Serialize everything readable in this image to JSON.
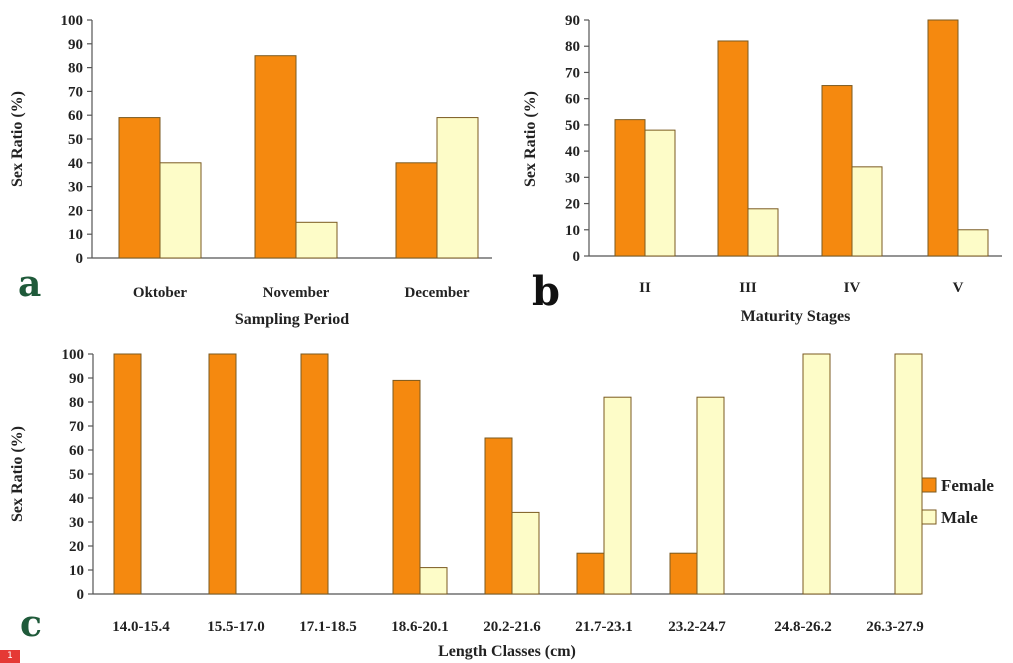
{
  "colors": {
    "female": "#f5890f",
    "male": "#fdfcc8",
    "bar_stroke": "#7a5a20",
    "axis": "#555555"
  },
  "legend": {
    "position": "right of panel c",
    "items": [
      {
        "name": "Female",
        "color": "#f5890f"
      },
      {
        "name": "Male",
        "color": "#fdfcc8"
      }
    ]
  },
  "chart_data": [
    {
      "panel": "a",
      "type": "bar",
      "ylabel": "Sex Ratio (%)",
      "xlabel": "Sampling Period",
      "ylim": [
        0,
        100
      ],
      "yticks": [
        0,
        10,
        20,
        30,
        40,
        50,
        60,
        70,
        80,
        90,
        100
      ],
      "grid": false,
      "categories": [
        "Oktober",
        "November",
        "December"
      ],
      "series": [
        {
          "name": "Female",
          "values": [
            59,
            85,
            40
          ]
        },
        {
          "name": "Male",
          "values": [
            40,
            15,
            59
          ]
        }
      ]
    },
    {
      "panel": "b",
      "type": "bar",
      "ylabel": "Sex Ratio (%)",
      "xlabel": "Maturity Stages",
      "ylim": [
        0,
        90
      ],
      "yticks": [
        0,
        10,
        20,
        30,
        40,
        50,
        60,
        70,
        80,
        90
      ],
      "grid": false,
      "categories": [
        "II",
        "III",
        "IV",
        "V"
      ],
      "series": [
        {
          "name": "Female",
          "values": [
            52,
            82,
            65,
            90
          ]
        },
        {
          "name": "Male",
          "values": [
            48,
            18,
            34,
            10
          ]
        }
      ]
    },
    {
      "panel": "c",
      "type": "bar",
      "ylabel": "Sex Ratio  (%)",
      "xlabel": "Length Classes (cm)",
      "ylim": [
        0,
        100
      ],
      "yticks": [
        0,
        10,
        20,
        30,
        40,
        50,
        60,
        70,
        80,
        90,
        100
      ],
      "grid": false,
      "categories": [
        "14.0-15.4",
        "15.5-17.0",
        "17.1-18.5",
        "18.6-20.1",
        "20.2-21.6",
        "21.7-23.1",
        "23.2-24.7",
        "24.8-26.2",
        "26.3-27.9"
      ],
      "series": [
        {
          "name": "Female",
          "values": [
            100,
            100,
            100,
            89,
            65,
            17,
            17,
            0,
            0
          ]
        },
        {
          "name": "Male",
          "values": [
            0,
            0,
            0,
            11,
            34,
            82,
            82,
            100,
            100
          ]
        }
      ]
    }
  ],
  "badge": "1"
}
